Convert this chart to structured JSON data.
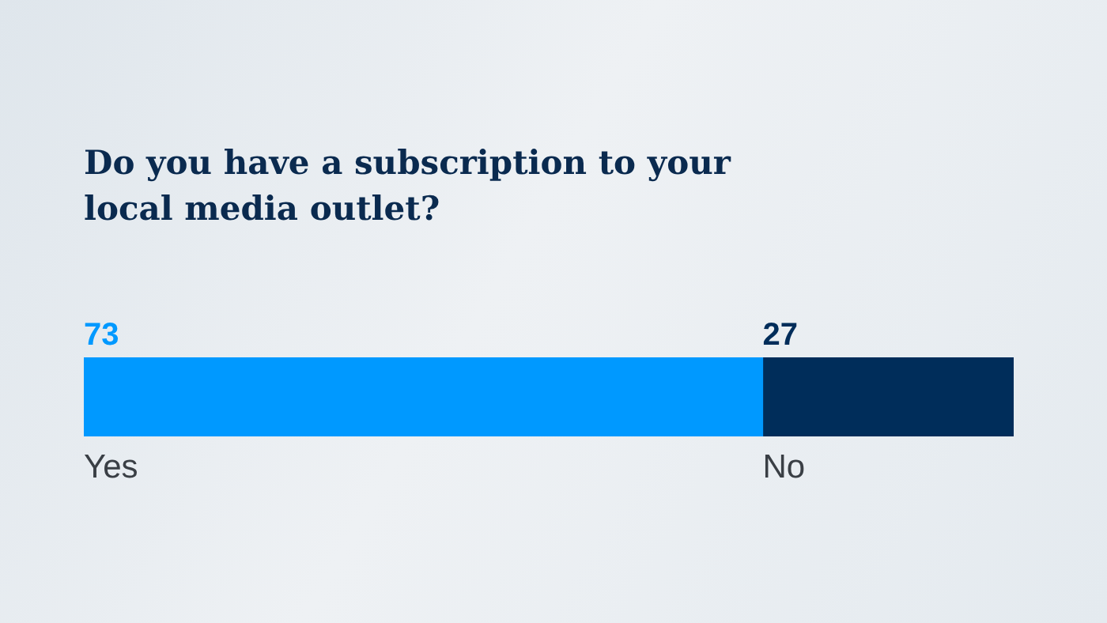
{
  "chart_data": {
    "type": "bar",
    "orientation": "horizontal",
    "stacked": true,
    "title": "Do you have a subscription to your local media outlet?",
    "categories": [
      null
    ],
    "series": [
      {
        "name": "Yes",
        "color": "#0099ff",
        "values": [
          73
        ]
      },
      {
        "name": "No",
        "color": "#002d5a",
        "values": [
          27
        ]
      }
    ],
    "data_labels": true
  }
}
